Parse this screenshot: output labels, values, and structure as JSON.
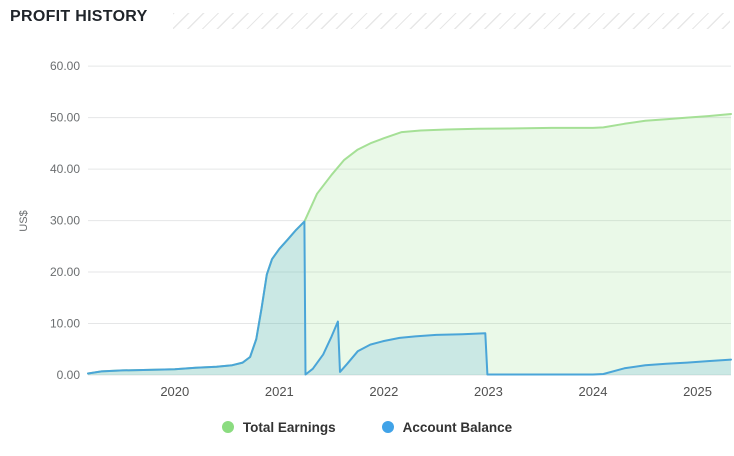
{
  "header": {
    "title": "PROFIT HISTORY"
  },
  "axes": {
    "y_axis_title": "US$",
    "y_tick_labels": [
      "0.00",
      "10.00",
      "20.00",
      "30.00",
      "40.00",
      "50.00",
      "60.00"
    ],
    "x_tick_labels": [
      "2020",
      "2021",
      "2022",
      "2023",
      "2024",
      "2025"
    ]
  },
  "colors": {
    "grid": "#e5e6e7",
    "y_tick_text": "#6b6e70",
    "x_tick_text": "#515151",
    "axis_title_text": "#6b6e70",
    "title_text": "#1f242a",
    "legend_text": "#333333"
  },
  "chart_data": {
    "type": "area",
    "title": "PROFIT HISTORY",
    "ylabel": "US$",
    "xlabel": "",
    "ylim": [
      0,
      60
    ],
    "yticks": [
      0,
      10,
      20,
      30,
      40,
      50,
      60
    ],
    "ytick_labels": [
      "0.00",
      "10.00",
      "20.00",
      "30.00",
      "40.00",
      "50.00",
      "60.00"
    ],
    "xticks": [
      2020,
      2021,
      2022,
      2023,
      2024,
      2025
    ],
    "xlim": [
      2019.17,
      2025.32
    ],
    "grid": true,
    "legend_position": "bottom",
    "series": [
      {
        "name": "Total Earnings",
        "color": "#a5e096",
        "fill": "rgba(141,222,130,0.18)",
        "legend_color": "#8bdc80",
        "x": [
          2019.17,
          2019.3,
          2019.5,
          2019.75,
          2020.0,
          2020.2,
          2020.4,
          2020.55,
          2020.65,
          2020.72,
          2020.78,
          2020.83,
          2020.88,
          2020.93,
          2021.0,
          2021.08,
          2021.16,
          2021.24,
          2021.36,
          2021.5,
          2021.62,
          2021.75,
          2021.88,
          2022.0,
          2022.17,
          2022.35,
          2022.6,
          2022.9,
          2023.2,
          2023.6,
          2024.0,
          2024.1,
          2024.3,
          2024.5,
          2024.7,
          2024.9,
          2025.1,
          2025.32
        ],
        "y": [
          0.3,
          0.7,
          0.9,
          1.0,
          1.1,
          1.4,
          1.6,
          1.9,
          2.4,
          3.5,
          7.0,
          13.0,
          19.5,
          22.5,
          24.5,
          26.3,
          28.2,
          29.8,
          35.2,
          38.9,
          41.8,
          43.8,
          45.1,
          46.0,
          47.2,
          47.5,
          47.7,
          47.85,
          47.9,
          48.0,
          48.0,
          48.1,
          48.8,
          49.4,
          49.7,
          50.0,
          50.3,
          50.7
        ]
      },
      {
        "name": "Account Balance",
        "color": "#4aa5d8",
        "fill": "rgba(74,165,216,0.20)",
        "legend_color": "#41a3e8",
        "x": [
          2019.17,
          2019.3,
          2019.5,
          2019.75,
          2020.0,
          2020.2,
          2020.4,
          2020.55,
          2020.65,
          2020.72,
          2020.78,
          2020.83,
          2020.88,
          2020.93,
          2021.0,
          2021.08,
          2021.16,
          2021.24,
          2021.25,
          2021.32,
          2021.42,
          2021.5,
          2021.56,
          2021.58,
          2021.65,
          2021.75,
          2021.87,
          2022.0,
          2022.15,
          2022.3,
          2022.5,
          2022.75,
          2022.97,
          2022.99,
          2023.3,
          2023.7,
          2024.0,
          2024.1,
          2024.3,
          2024.5,
          2024.7,
          2024.9,
          2025.1,
          2025.32
        ],
        "y": [
          0.3,
          0.7,
          0.9,
          1.0,
          1.1,
          1.4,
          1.6,
          1.9,
          2.4,
          3.5,
          7.0,
          13.0,
          19.5,
          22.5,
          24.5,
          26.3,
          28.2,
          29.8,
          0.1,
          1.2,
          4.0,
          7.5,
          10.4,
          0.6,
          2.2,
          4.6,
          5.9,
          6.6,
          7.2,
          7.5,
          7.8,
          7.9,
          8.1,
          0.1,
          0.1,
          0.1,
          0.1,
          0.2,
          1.3,
          1.9,
          2.2,
          2.4,
          2.7,
          3.0
        ]
      }
    ]
  }
}
